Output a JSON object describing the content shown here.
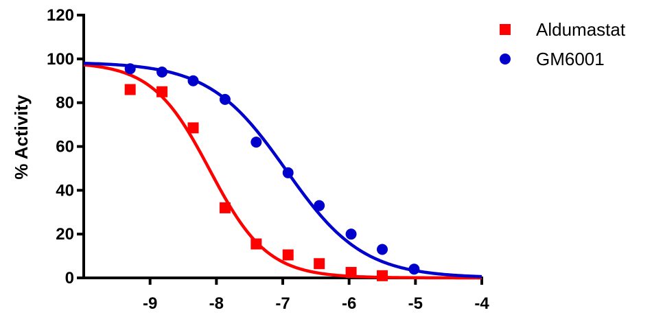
{
  "chart_data": {
    "type": "scatter",
    "title": "",
    "xlabel": "",
    "ylabel": "% Activity",
    "xlim": [
      -10,
      -4
    ],
    "ylim": [
      0,
      120
    ],
    "x_ticks": [
      -9,
      -8,
      -7,
      -6,
      -5,
      -4
    ],
    "x_tick_labels": [
      "-9",
      "-8",
      "-7",
      "-6",
      "-5",
      "-4"
    ],
    "y_ticks": [
      0,
      20,
      40,
      60,
      80,
      100,
      120
    ],
    "y_tick_labels": [
      "0",
      "20",
      "40",
      "60",
      "80",
      "100",
      "120"
    ],
    "grid": false,
    "legend_position": "top-right",
    "series": [
      {
        "name": "Aldumastat",
        "color": "#ff0000",
        "marker": "square",
        "x": [
          -9.3,
          -8.82,
          -8.35,
          -7.87,
          -7.4,
          -6.92,
          -6.45,
          -5.97,
          -5.5
        ],
        "y": [
          86,
          85,
          68.5,
          32,
          15.5,
          10.5,
          6.5,
          2.5,
          1
        ],
        "fit": {
          "top": 98.5,
          "bottom": 0,
          "logIC50": -8.1,
          "hill": -1.0
        }
      },
      {
        "name": "GM6001",
        "color": "#0000cc",
        "marker": "circle",
        "x": [
          -9.3,
          -8.82,
          -8.35,
          -7.87,
          -7.4,
          -6.92,
          -6.45,
          -5.97,
          -5.5,
          -5.02
        ],
        "y": [
          95.5,
          94,
          90,
          81.5,
          62,
          48,
          33,
          20,
          13,
          4
        ],
        "fit": {
          "top": 98.5,
          "bottom": 0,
          "logIC50": -6.95,
          "hill": -0.75
        }
      }
    ]
  }
}
